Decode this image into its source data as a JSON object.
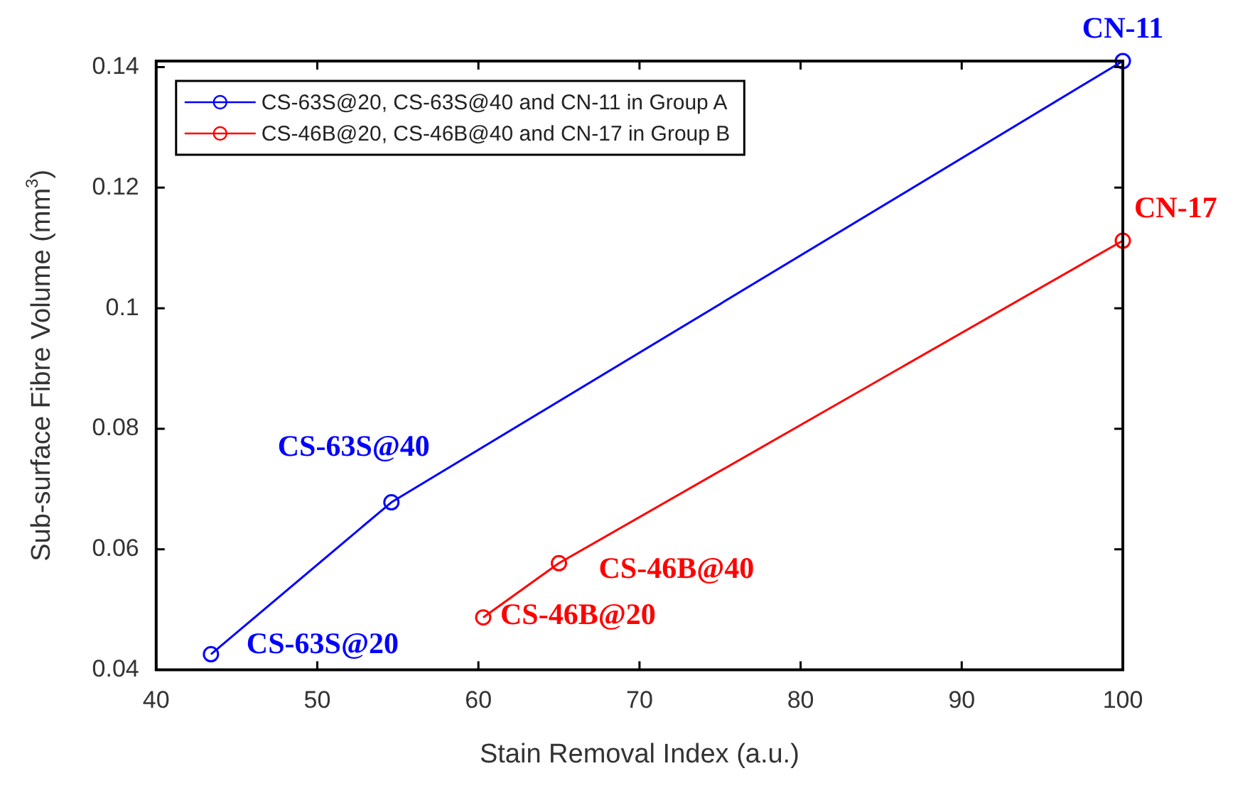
{
  "chart_data": {
    "type": "line",
    "xlabel": "Stain Removal Index (a.u.)",
    "ylabel": "Sub-surface Fibre Volume (mm$^{3}$)",
    "series": [
      {
        "name": "CS-63S@20, CS-63S@40 and CN-11 in Group A",
        "color": "#0000ff",
        "x": [
          43.4,
          54.6,
          100
        ],
        "values": [
          0.0426,
          0.0678,
          0.141
        ]
      },
      {
        "name": "CS-46B@20, CS-46B@40 and CN-17 in Group B",
        "color": "#ff0000",
        "x": [
          60.3,
          65.0,
          100
        ],
        "values": [
          0.0487,
          0.0577,
          0.1112
        ]
      }
    ],
    "annotations": [
      {
        "text": "CS-63S@20",
        "x": 43.4,
        "y": 0.0426
      },
      {
        "text": "CS-63S@40",
        "x": 54.6,
        "y": 0.0678
      },
      {
        "text": "CN-11",
        "x": 100,
        "y": 0.141
      },
      {
        "text": "CS-46B@20",
        "x": 60.3,
        "y": 0.0487
      },
      {
        "text": "CS-46B@40",
        "x": 65.0,
        "y": 0.0577
      },
      {
        "text": "CN-17",
        "x": 100,
        "y": 0.1112
      }
    ],
    "xlim": [
      40,
      100
    ],
    "xticks": [
      40,
      50,
      60,
      70,
      80,
      90,
      100
    ],
    "ylim": [
      0.04,
      0.141
    ],
    "yticks": [
      0.04,
      0.06,
      0.08,
      0.1,
      0.12,
      0.14
    ],
    "legend": "top left",
    "marker": "circle",
    "line_style": "solid"
  }
}
